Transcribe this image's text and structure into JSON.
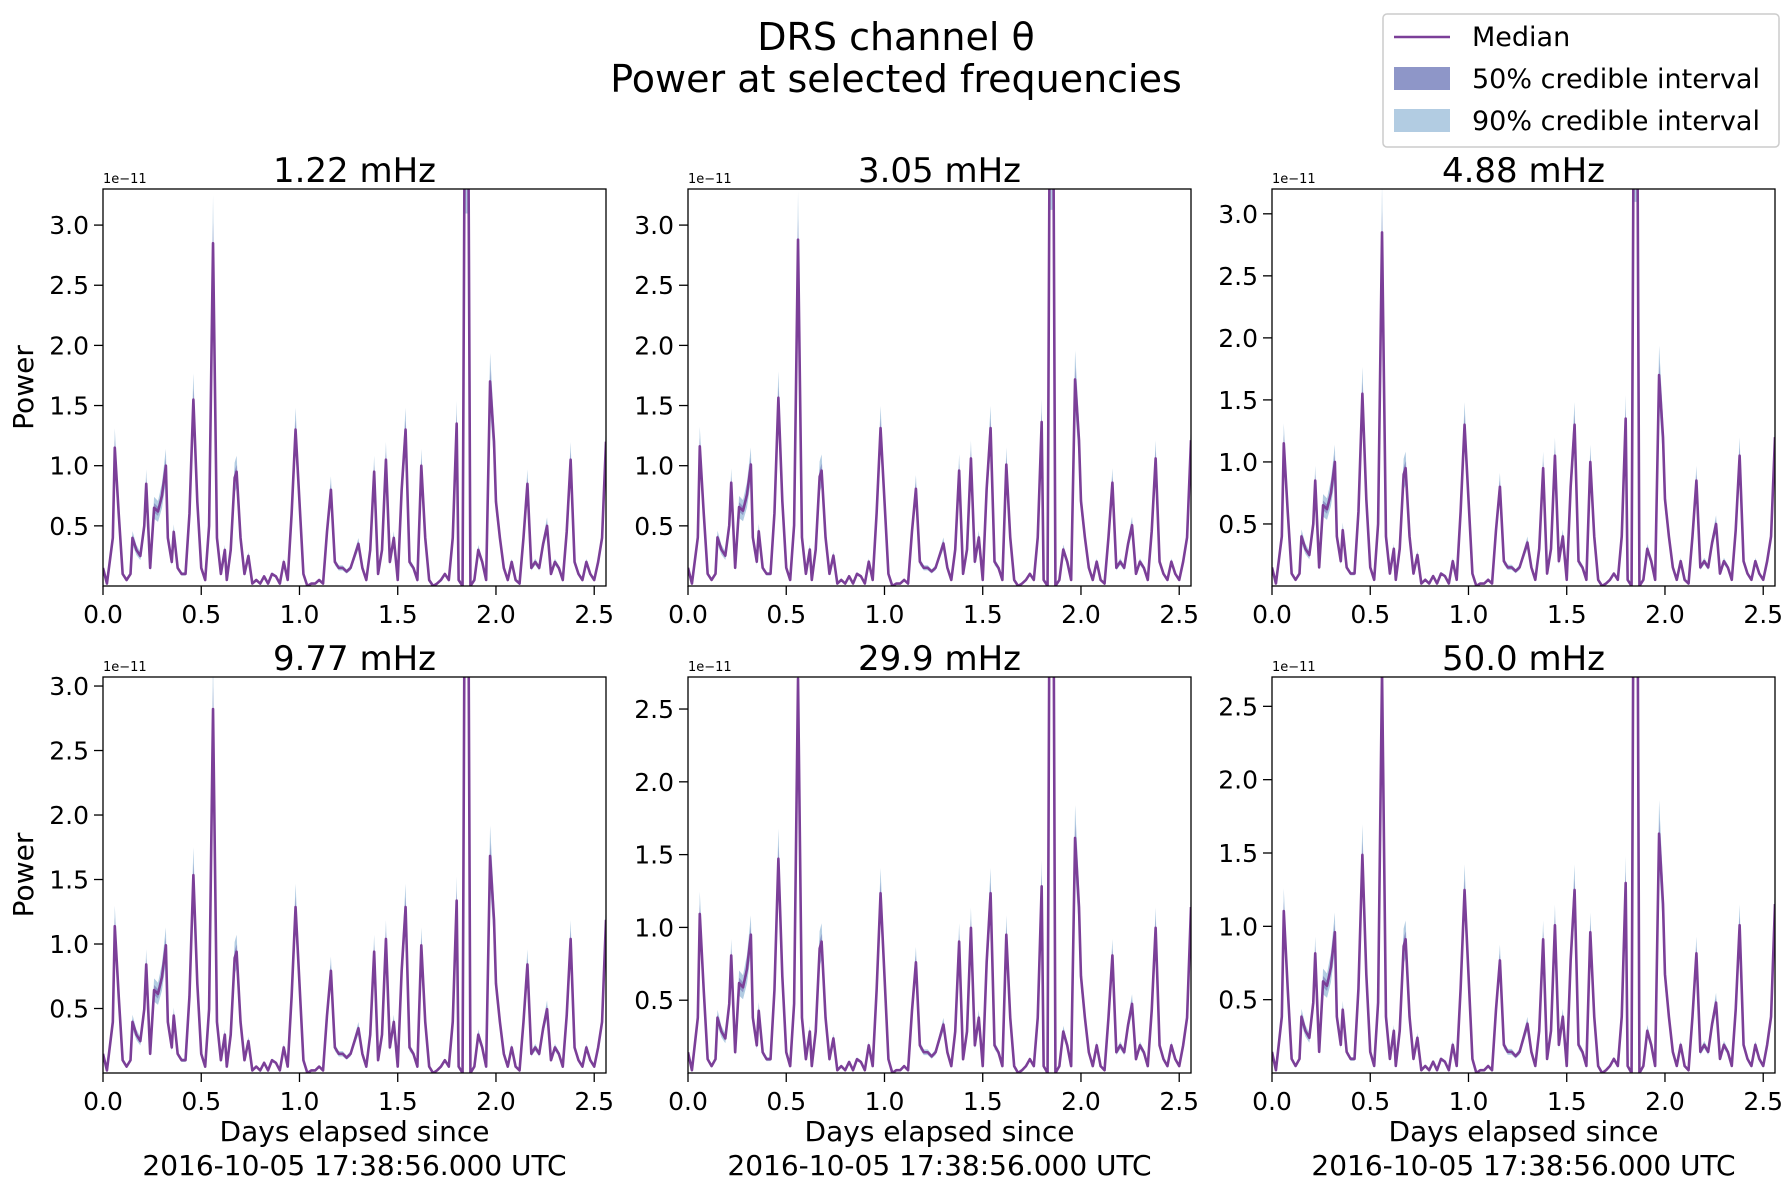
{
  "figure": {
    "title_line1": "DRS channel θ",
    "title_line2": "Power at selected frequencies",
    "xlabel_line1": "Days elapsed since",
    "xlabel_line2": "2016-10-05 17:38:56.000 UTC",
    "ylabel": "Power",
    "offset_text": "1e−11"
  },
  "legend": {
    "median": "Median",
    "ci50": "50% credible interval",
    "ci90": "90% credible interval"
  },
  "colors": {
    "median": "#7b3f98",
    "ci50": "#8e96c8",
    "ci90": "#b2cce2"
  },
  "xticks": [
    {
      "value": 0.0,
      "label": "0.0"
    },
    {
      "value": 0.5,
      "label": "0.5"
    },
    {
      "value": 1.0,
      "label": "1.0"
    },
    {
      "value": 1.5,
      "label": "1.5"
    },
    {
      "value": 2.0,
      "label": "2.0"
    },
    {
      "value": 2.5,
      "label": "2.5"
    }
  ],
  "chart_data": [
    {
      "type": "line",
      "title": "1.22 mHz",
      "scale": 1.0,
      "xlim": [
        0,
        2.56
      ],
      "ylim": [
        0,
        3.3
      ],
      "ylabel": "Power",
      "yticks": [
        {
          "value": 0.5,
          "label": "0.5"
        },
        {
          "value": 1.0,
          "label": "1.0"
        },
        {
          "value": 1.5,
          "label": "1.5"
        },
        {
          "value": 2.0,
          "label": "2.0"
        },
        {
          "value": 2.5,
          "label": "2.5"
        },
        {
          "value": 3.0,
          "label": "3.0"
        }
      ]
    },
    {
      "type": "line",
      "title": "3.05 mHz",
      "scale": 1.01,
      "xlim": [
        0,
        2.56
      ],
      "ylim": [
        0,
        3.3
      ],
      "ylabel": "",
      "yticks": [
        {
          "value": 0.5,
          "label": "0.5"
        },
        {
          "value": 1.0,
          "label": "1.0"
        },
        {
          "value": 1.5,
          "label": "1.5"
        },
        {
          "value": 2.0,
          "label": "2.0"
        },
        {
          "value": 2.5,
          "label": "2.5"
        },
        {
          "value": 3.0,
          "label": "3.0"
        }
      ]
    },
    {
      "type": "line",
      "title": "4.88 mHz",
      "scale": 1.0,
      "xlim": [
        0,
        2.56
      ],
      "ylim": [
        0,
        3.2
      ],
      "ylabel": "",
      "yticks": [
        {
          "value": 0.5,
          "label": "0.5"
        },
        {
          "value": 1.0,
          "label": "1.0"
        },
        {
          "value": 1.5,
          "label": "1.5"
        },
        {
          "value": 2.0,
          "label": "2.0"
        },
        {
          "value": 2.5,
          "label": "2.5"
        },
        {
          "value": 3.0,
          "label": "3.0"
        }
      ]
    },
    {
      "type": "line",
      "title": "9.77 mHz",
      "scale": 0.99,
      "xlim": [
        0,
        2.56
      ],
      "ylim": [
        0,
        3.07
      ],
      "ylabel": "Power",
      "yticks": [
        {
          "value": 0.5,
          "label": "0.5"
        },
        {
          "value": 1.0,
          "label": "1.0"
        },
        {
          "value": 1.5,
          "label": "1.5"
        },
        {
          "value": 2.0,
          "label": "2.0"
        },
        {
          "value": 2.5,
          "label": "2.5"
        },
        {
          "value": 3.0,
          "label": "3.0"
        }
      ]
    },
    {
      "type": "line",
      "title": "29.9 mHz",
      "scale": 0.95,
      "xlim": [
        0,
        2.56
      ],
      "ylim": [
        0,
        2.72
      ],
      "ylabel": "",
      "yticks": [
        {
          "value": 0.5,
          "label": "0.5"
        },
        {
          "value": 1.0,
          "label": "1.0"
        },
        {
          "value": 1.5,
          "label": "1.5"
        },
        {
          "value": 2.0,
          "label": "2.0"
        },
        {
          "value": 2.5,
          "label": "2.5"
        }
      ]
    },
    {
      "type": "line",
      "title": "50.0 mHz",
      "scale": 0.96,
      "xlim": [
        0,
        2.56
      ],
      "ylim": [
        0,
        2.7
      ],
      "ylabel": "",
      "yticks": [
        {
          "value": 0.5,
          "label": "0.5"
        },
        {
          "value": 1.0,
          "label": "1.0"
        },
        {
          "value": 1.5,
          "label": "1.5"
        },
        {
          "value": 2.0,
          "label": "2.0"
        },
        {
          "value": 2.5,
          "label": "2.5"
        }
      ]
    }
  ],
  "median_profile": [
    [
      0.0,
      0.15
    ],
    [
      0.02,
      0.02
    ],
    [
      0.05,
      0.4
    ],
    [
      0.06,
      1.15
    ],
    [
      0.08,
      0.6
    ],
    [
      0.1,
      0.1
    ],
    [
      0.12,
      0.05
    ],
    [
      0.14,
      0.1
    ],
    [
      0.15,
      0.4
    ],
    [
      0.17,
      0.3
    ],
    [
      0.19,
      0.25
    ],
    [
      0.21,
      0.5
    ],
    [
      0.22,
      0.85
    ],
    [
      0.24,
      0.15
    ],
    [
      0.26,
      0.65
    ],
    [
      0.28,
      0.62
    ],
    [
      0.3,
      0.75
    ],
    [
      0.32,
      1.0
    ],
    [
      0.33,
      0.4
    ],
    [
      0.35,
      0.2
    ],
    [
      0.36,
      0.45
    ],
    [
      0.38,
      0.15
    ],
    [
      0.4,
      0.1
    ],
    [
      0.42,
      0.1
    ],
    [
      0.44,
      0.6
    ],
    [
      0.46,
      1.55
    ],
    [
      0.48,
      0.7
    ],
    [
      0.5,
      0.15
    ],
    [
      0.52,
      0.05
    ],
    [
      0.54,
      0.5
    ],
    [
      0.56,
      2.85
    ],
    [
      0.58,
      0.4
    ],
    [
      0.6,
      0.1
    ],
    [
      0.62,
      0.3
    ],
    [
      0.63,
      0.05
    ],
    [
      0.65,
      0.3
    ],
    [
      0.67,
      0.9
    ],
    [
      0.68,
      0.95
    ],
    [
      0.7,
      0.4
    ],
    [
      0.72,
      0.1
    ],
    [
      0.74,
      0.25
    ],
    [
      0.76,
      0.02
    ],
    [
      0.78,
      0.05
    ],
    [
      0.8,
      0.02
    ],
    [
      0.82,
      0.08
    ],
    [
      0.84,
      0.02
    ],
    [
      0.86,
      0.1
    ],
    [
      0.88,
      0.08
    ],
    [
      0.9,
      0.02
    ],
    [
      0.92,
      0.2
    ],
    [
      0.94,
      0.05
    ],
    [
      0.96,
      0.6
    ],
    [
      0.98,
      1.3
    ],
    [
      1.0,
      0.7
    ],
    [
      1.02,
      0.1
    ],
    [
      1.04,
      0.0
    ],
    [
      1.06,
      0.02
    ],
    [
      1.08,
      0.02
    ],
    [
      1.1,
      0.05
    ],
    [
      1.12,
      0.02
    ],
    [
      1.14,
      0.45
    ],
    [
      1.16,
      0.8
    ],
    [
      1.18,
      0.2
    ],
    [
      1.2,
      0.15
    ],
    [
      1.22,
      0.15
    ],
    [
      1.24,
      0.12
    ],
    [
      1.26,
      0.15
    ],
    [
      1.28,
      0.25
    ],
    [
      1.3,
      0.35
    ],
    [
      1.32,
      0.15
    ],
    [
      1.34,
      0.05
    ],
    [
      1.36,
      0.3
    ],
    [
      1.38,
      0.95
    ],
    [
      1.4,
      0.1
    ],
    [
      1.42,
      0.3
    ],
    [
      1.44,
      1.05
    ],
    [
      1.46,
      0.2
    ],
    [
      1.48,
      0.4
    ],
    [
      1.5,
      0.05
    ],
    [
      1.52,
      0.8
    ],
    [
      1.54,
      1.3
    ],
    [
      1.56,
      0.2
    ],
    [
      1.58,
      0.15
    ],
    [
      1.6,
      0.05
    ],
    [
      1.62,
      1.0
    ],
    [
      1.64,
      0.4
    ],
    [
      1.66,
      0.05
    ],
    [
      1.68,
      0.0
    ],
    [
      1.7,
      0.02
    ],
    [
      1.72,
      0.05
    ],
    [
      1.74,
      0.1
    ],
    [
      1.76,
      0.05
    ],
    [
      1.78,
      0.4
    ],
    [
      1.8,
      1.35
    ],
    [
      1.81,
      0.05
    ],
    [
      1.83,
      0.0
    ],
    [
      1.84,
      3.6
    ],
    [
      1.86,
      3.6
    ],
    [
      1.87,
      0.0
    ],
    [
      1.89,
      0.05
    ],
    [
      1.91,
      0.3
    ],
    [
      1.93,
      0.2
    ],
    [
      1.95,
      0.05
    ],
    [
      1.97,
      1.7
    ],
    [
      1.99,
      1.2
    ],
    [
      2.0,
      0.7
    ],
    [
      2.02,
      0.4
    ],
    [
      2.04,
      0.15
    ],
    [
      2.06,
      0.05
    ],
    [
      2.08,
      0.2
    ],
    [
      2.1,
      0.05
    ],
    [
      2.12,
      0.02
    ],
    [
      2.14,
      0.4
    ],
    [
      2.16,
      0.85
    ],
    [
      2.18,
      0.15
    ],
    [
      2.2,
      0.2
    ],
    [
      2.22,
      0.15
    ],
    [
      2.24,
      0.35
    ],
    [
      2.26,
      0.5
    ],
    [
      2.28,
      0.1
    ],
    [
      2.3,
      0.2
    ],
    [
      2.32,
      0.15
    ],
    [
      2.34,
      0.05
    ],
    [
      2.36,
      0.45
    ],
    [
      2.38,
      1.05
    ],
    [
      2.4,
      0.2
    ],
    [
      2.42,
      0.1
    ],
    [
      2.44,
      0.05
    ],
    [
      2.46,
      0.2
    ],
    [
      2.48,
      0.1
    ],
    [
      2.5,
      0.05
    ],
    [
      2.52,
      0.2
    ],
    [
      2.54,
      0.4
    ],
    [
      2.56,
      1.2
    ]
  ]
}
